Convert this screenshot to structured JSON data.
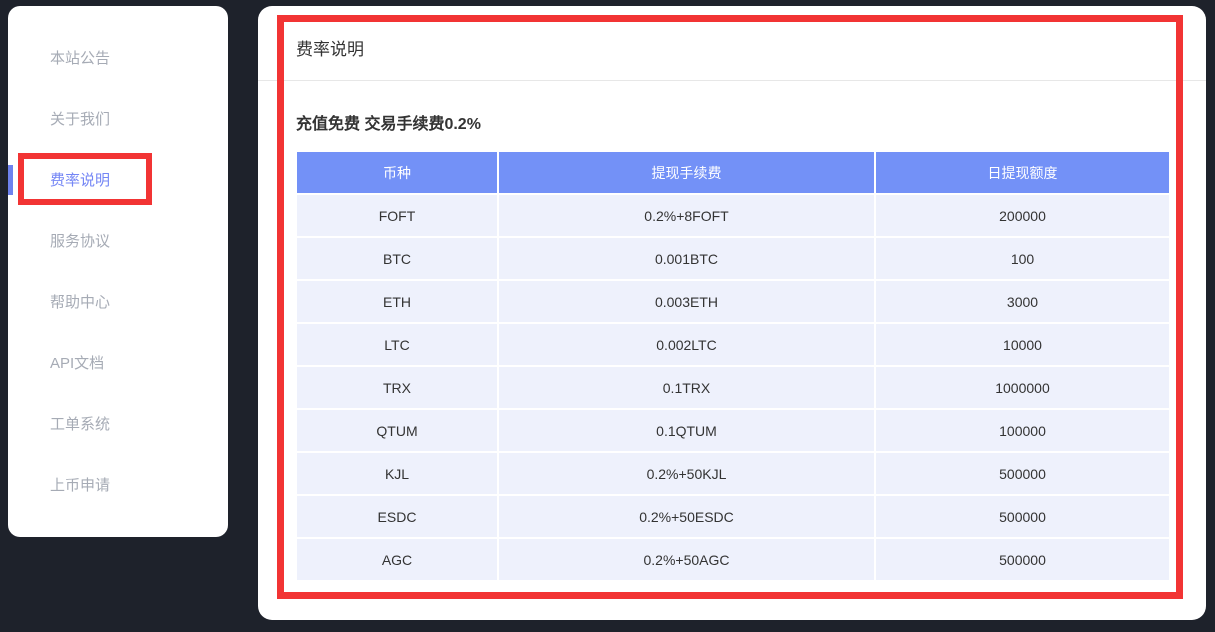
{
  "colors": {
    "background": "#1e222b",
    "card": "#ffffff",
    "table_header": "#7391f7",
    "table_row": "#eef1fc",
    "active_item": "#7486f5",
    "indicator": "#6e82ee",
    "annotation_red": "#f23434",
    "divider": "#e7e7e7",
    "text_dark": "#333333",
    "text_muted": "#a6abb5"
  },
  "sidebar": {
    "items": [
      {
        "label": "本站公告",
        "active": false
      },
      {
        "label": "关于我们",
        "active": false
      },
      {
        "label": "费率说明",
        "active": true
      },
      {
        "label": "服务协议",
        "active": false
      },
      {
        "label": "帮助中心",
        "active": false
      },
      {
        "label": "API文档",
        "active": false
      },
      {
        "label": "工单系统",
        "active": false
      },
      {
        "label": "上币申请",
        "active": false
      }
    ]
  },
  "main": {
    "title": "费率说明",
    "note": "充值免费 交易手续费0.2%",
    "table": {
      "headers": [
        "币种",
        "提现手续费",
        "日提现额度"
      ],
      "rows": [
        [
          "FOFT",
          "0.2%+8FOFT",
          "200000"
        ],
        [
          "BTC",
          "0.001BTC",
          "100"
        ],
        [
          "ETH",
          "0.003ETH",
          "3000"
        ],
        [
          "LTC",
          "0.002LTC",
          "10000"
        ],
        [
          "TRX",
          "0.1TRX",
          "1000000"
        ],
        [
          "QTUM",
          "0.1QTUM",
          "100000"
        ],
        [
          "KJL",
          "0.2%+50KJL",
          "500000"
        ],
        [
          "ESDC",
          "0.2%+50ESDC",
          "500000"
        ],
        [
          "AGC",
          "0.2%+50AGC",
          "500000"
        ]
      ]
    }
  }
}
